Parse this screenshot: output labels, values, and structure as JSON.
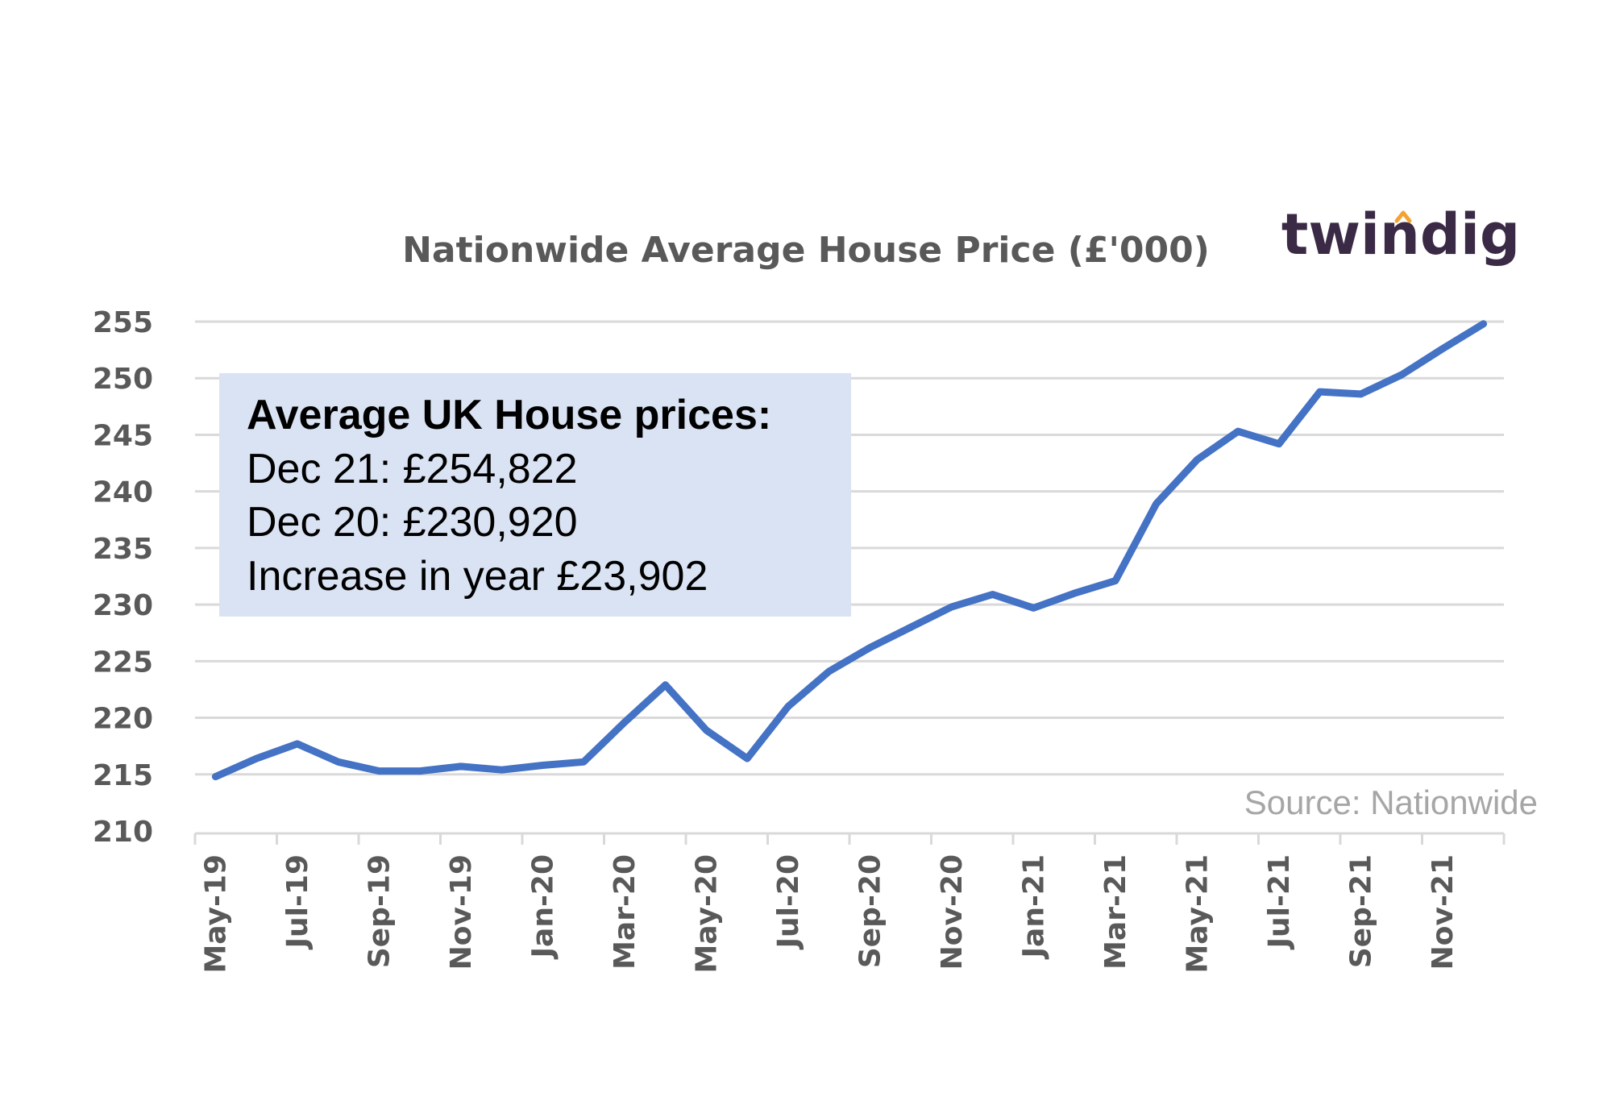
{
  "chart_data": {
    "type": "line",
    "title": "Nationwide Average House Price (£'000)",
    "xlabel": "",
    "ylabel": "",
    "ylim": [
      210,
      255
    ],
    "yticks": [
      210,
      215,
      220,
      225,
      230,
      235,
      240,
      245,
      250,
      255
    ],
    "x": [
      "May-19",
      "Jun-19",
      "Jul-19",
      "Aug-19",
      "Sep-19",
      "Oct-19",
      "Nov-19",
      "Dec-19",
      "Jan-20",
      "Feb-20",
      "Mar-20",
      "Apr-20",
      "May-20",
      "Jun-20",
      "Jul-20",
      "Aug-20",
      "Sep-20",
      "Oct-20",
      "Nov-20",
      "Dec-20",
      "Jan-21",
      "Feb-21",
      "Mar-21",
      "Apr-21",
      "May-21",
      "Jun-21",
      "Jul-21",
      "Aug-21",
      "Sep-21",
      "Oct-21",
      "Nov-21",
      "Dec-21"
    ],
    "xtick_labels": [
      "May-19",
      "Jul-19",
      "Sep-19",
      "Nov-19",
      "Jan-20",
      "Mar-20",
      "May-20",
      "Jul-20",
      "Sep-20",
      "Nov-20",
      "Jan-21",
      "Mar-21",
      "May-21",
      "Jul-21",
      "Sep-21",
      "Nov-21"
    ],
    "series": [
      {
        "values": [
          214.8,
          216.4,
          217.7,
          216.1,
          215.3,
          215.3,
          215.7,
          215.4,
          215.8,
          216.1,
          219.6,
          222.9,
          218.9,
          216.4,
          221.0,
          224.1,
          226.2,
          228.0,
          229.8,
          230.9,
          229.7,
          231.0,
          232.1,
          238.9,
          242.8,
          245.3,
          244.2,
          248.8,
          248.6,
          250.3,
          252.6,
          254.8
        ],
        "color": "#4472c4"
      }
    ],
    "grid": true,
    "legend": "none"
  },
  "callout": {
    "heading": "Average UK House prices:",
    "lines": [
      "Dec 21: £254,822",
      "Dec 20: £230,920",
      "Increase in year  £23,902"
    ]
  },
  "source": "Source: Nationwide",
  "brand": "twindig",
  "colors": {
    "series": "#4472c4",
    "callout_bg": "#dae3f3",
    "brand_text": "#3b2a45",
    "brand_accent": "#f4a232"
  }
}
